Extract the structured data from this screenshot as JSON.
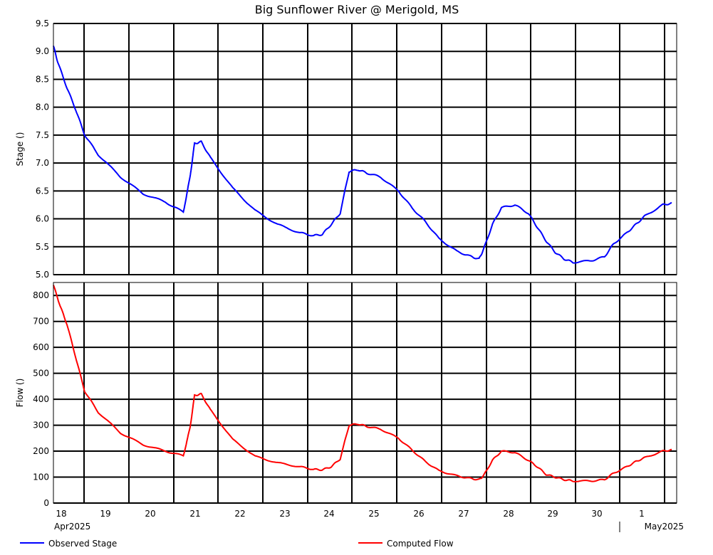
{
  "chart_data": {
    "type": "line",
    "title": "Big Sunflower River @ Merigold, MS",
    "x_axis": {
      "day_labels": [
        "18",
        "19",
        "20",
        "21",
        "22",
        "23",
        "24",
        "25",
        "26",
        "27",
        "28",
        "29",
        "30",
        "1"
      ],
      "month_labels": [
        "Apr2025",
        "May2025"
      ],
      "range": [
        "2025-04-18 00:00",
        "2025-05-01 20:00"
      ]
    },
    "panels": [
      {
        "ylabel": "Stage ()",
        "ylim": [
          5.0,
          9.5
        ],
        "yticks": [
          "5.0",
          "5.5",
          "6.0",
          "6.5",
          "7.0",
          "7.5",
          "8.0",
          "8.5",
          "9.0",
          "9.5"
        ],
        "series": [
          {
            "name": "Observed Stage",
            "color": "#0000ff",
            "x_days": [
              0.0,
              0.1,
              0.3,
              0.5,
              0.7,
              1.0,
              1.5,
              2.0,
              2.5,
              2.9,
              3.05,
              3.15,
              3.3,
              3.5,
              4.0,
              4.5,
              5.0,
              5.5,
              5.8,
              6.0,
              6.2,
              6.4,
              6.6,
              6.8,
              7.0,
              7.3,
              7.7,
              8.0,
              8.3,
              8.6,
              9.0,
              9.3,
              9.5,
              9.6,
              9.8,
              10.0,
              10.3,
              10.6,
              10.8,
              11.0,
              11.2,
              11.4,
              11.6,
              12.0,
              12.3,
              12.5,
              12.8,
              13.0,
              13.2,
              13.6,
              13.8
            ],
            "values": [
              9.1,
              8.8,
              8.35,
              7.95,
              7.5,
              7.15,
              6.75,
              6.45,
              6.3,
              6.12,
              6.75,
              7.35,
              7.38,
              7.1,
              6.55,
              6.15,
              5.9,
              5.75,
              5.7,
              5.72,
              5.9,
              6.1,
              6.85,
              6.88,
              6.82,
              6.75,
              6.5,
              6.2,
              5.95,
              5.65,
              5.42,
              5.33,
              5.28,
              5.45,
              5.9,
              6.2,
              6.25,
              6.1,
              5.85,
              5.6,
              5.4,
              5.28,
              5.22,
              5.25,
              5.32,
              5.55,
              5.75,
              5.9,
              6.05,
              6.25,
              6.28
            ]
          }
        ]
      },
      {
        "ylabel": "Flow ()",
        "ylim": [
          0,
          850
        ],
        "yticks": [
          "0",
          "100",
          "200",
          "300",
          "400",
          "500",
          "600",
          "700",
          "800"
        ],
        "series": [
          {
            "name": "Computed Flow",
            "color": "#ff0000",
            "x_days": [
              0.0,
              0.15,
              0.3,
              0.5,
              0.7,
              1.0,
              1.5,
              2.0,
              2.5,
              2.9,
              3.05,
              3.15,
              3.3,
              3.5,
              4.0,
              4.5,
              5.0,
              5.5,
              5.8,
              6.0,
              6.2,
              6.4,
              6.6,
              6.8,
              7.0,
              7.3,
              7.7,
              8.0,
              8.3,
              8.6,
              9.0,
              9.3,
              9.5,
              9.6,
              9.8,
              10.0,
              10.3,
              10.6,
              10.8,
              11.0,
              11.2,
              11.4,
              11.6,
              12.0,
              12.3,
              12.5,
              12.8,
              13.0,
              13.2,
              13.6,
              13.8
            ],
            "values": [
              840,
              760,
              690,
              560,
              430,
              350,
              270,
              225,
              200,
              182,
              290,
              415,
              420,
              360,
              245,
              180,
              155,
              140,
              130,
              128,
              140,
              170,
              300,
              305,
              295,
              285,
              250,
              205,
              160,
              125,
              105,
              95,
              90,
              105,
              165,
              200,
              195,
              165,
              140,
              110,
              100,
              90,
              85,
              85,
              90,
              115,
              140,
              160,
              175,
              200,
              205
            ]
          }
        ]
      }
    ],
    "legend": [
      "Observed Stage",
      "Computed Flow"
    ],
    "legend_placement": "bottom",
    "grid": true
  }
}
